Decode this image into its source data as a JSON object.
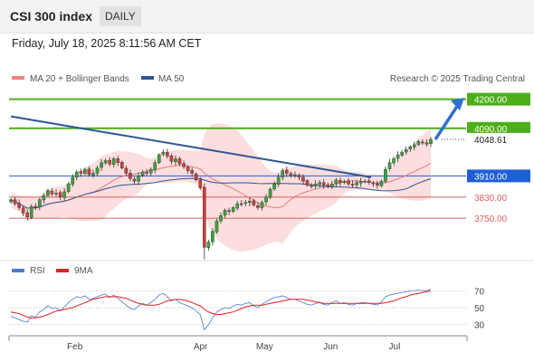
{
  "header": {
    "title": "CSI 300 index",
    "timeframe": "DAILY",
    "datetime": "Friday, July 18, 2025 8:11:56 AM CET"
  },
  "chart_data": {
    "type": "candlestick",
    "copyright": "Research © 2025 Trading Central",
    "legend": [
      {
        "label": "MA 20 + Bollinger Bands",
        "color": "#f08080"
      },
      {
        "label": "MA 50",
        "color": "#2f5597"
      }
    ],
    "x_labels": [
      "Feb",
      "Apr",
      "May",
      "Jun",
      "Jul"
    ],
    "x_label_dates": [
      "2025-02-01",
      "2025-04-01",
      "2025-05-01",
      "2025-06-01",
      "2025-07-01"
    ],
    "date_range": [
      "2025-01-02",
      "2025-07-18"
    ],
    "y_range": [
      3600,
      4250
    ],
    "levels": [
      {
        "value": 4200.0,
        "label": "4200.00",
        "kind": "resistance",
        "color": "#4caf1a"
      },
      {
        "value": 4090.0,
        "label": "4090.00",
        "kind": "resistance",
        "color": "#4caf1a"
      },
      {
        "value": 4048.61,
        "label": "4048.61",
        "kind": "last",
        "color": "#222222"
      },
      {
        "value": 3910.0,
        "label": "3910.00",
        "kind": "pivot",
        "color": "#1f5fd6"
      },
      {
        "value": 3830.0,
        "label": "3830.00",
        "kind": "support",
        "color": "#e06060"
      },
      {
        "value": 3750.0,
        "label": "3750.00",
        "kind": "support",
        "color": "#e06060"
      }
    ],
    "trendline": {
      "start": {
        "date": "2025-01-02",
        "value": 4135
      },
      "end": {
        "date": "2025-06-20",
        "value": 3905
      }
    },
    "close": [
      3820,
      3805,
      3790,
      3770,
      3755,
      3795,
      3790,
      3820,
      3835,
      3855,
      3842,
      3845,
      3830,
      3850,
      3880,
      3905,
      3925,
      3920,
      3935,
      3915,
      3920,
      3940,
      3960,
      3968,
      3955,
      3975,
      3960,
      3940,
      3920,
      3900,
      3890,
      3910,
      3925,
      3920,
      3935,
      3960,
      3990,
      4000,
      3985,
      3965,
      3975,
      3955,
      3945,
      3930,
      3920,
      3895,
      3865,
      3640,
      3660,
      3700,
      3740,
      3760,
      3780,
      3775,
      3790,
      3805,
      3805,
      3810,
      3815,
      3800,
      3790,
      3810,
      3830,
      3860,
      3880,
      3905,
      3930,
      3920,
      3910,
      3915,
      3905,
      3890,
      3875,
      3870,
      3880,
      3885,
      3875,
      3870,
      3880,
      3895,
      3885,
      3890,
      3880,
      3875,
      3885,
      3890,
      3890,
      3885,
      3880,
      3875,
      3890,
      3935,
      3960,
      3975,
      3990,
      4000,
      4010,
      4020,
      4028,
      4040,
      4035,
      4030,
      4048
    ],
    "rsi": {
      "levels": [
        70,
        50,
        30
      ],
      "legend": [
        {
          "label": "RSI",
          "color": "#4a7bd0"
        },
        {
          "label": "9MA",
          "color": "#e02020"
        }
      ],
      "rsi": [
        40,
        38,
        36,
        34,
        33,
        40,
        39,
        45,
        48,
        52,
        49,
        50,
        46,
        51,
        56,
        60,
        63,
        62,
        64,
        60,
        61,
        63,
        65,
        66,
        62,
        65,
        61,
        57,
        53,
        49,
        48,
        52,
        55,
        53,
        56,
        60,
        65,
        67,
        63,
        58,
        60,
        56,
        54,
        52,
        50,
        46,
        42,
        24,
        30,
        38,
        45,
        48,
        50,
        49,
        52,
        54,
        53,
        55,
        56,
        52,
        50,
        54,
        57,
        60,
        62,
        63,
        64,
        62,
        60,
        60,
        58,
        56,
        54,
        53,
        55,
        56,
        54,
        53,
        56,
        58,
        55,
        56,
        54,
        53,
        55,
        56,
        56,
        55,
        54,
        53,
        57,
        63,
        65,
        66,
        67,
        68,
        69,
        70,
        70,
        71,
        70,
        70,
        72
      ],
      "ma9": [
        45,
        44,
        43,
        41,
        39,
        38,
        38,
        39,
        40,
        42,
        44,
        46,
        47,
        48,
        49,
        50,
        52,
        54,
        56,
        58,
        60,
        61,
        62,
        63,
        63,
        63,
        63,
        62,
        61,
        59,
        57,
        55,
        54,
        53,
        53,
        53,
        54,
        56,
        58,
        59,
        60,
        60,
        59,
        58,
        56,
        54,
        52,
        48,
        45,
        43,
        42,
        42,
        43,
        44,
        45,
        47,
        49,
        51,
        52,
        53,
        53,
        53,
        54,
        55,
        56,
        57,
        58,
        59,
        60,
        60,
        60,
        60,
        59,
        58,
        57,
        56,
        55,
        55,
        55,
        55,
        55,
        55,
        55,
        55,
        55,
        55,
        55,
        55,
        55,
        55,
        55,
        56,
        57,
        58,
        60,
        62,
        63,
        65,
        66,
        67,
        68,
        69,
        70
      ]
    }
  }
}
